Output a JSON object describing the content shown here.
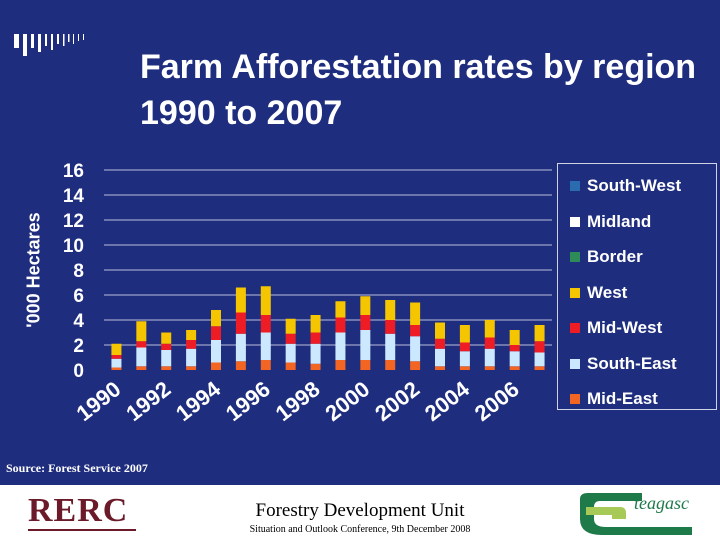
{
  "title": "Farm Afforestation rates by region 1990 to 2007",
  "source": "Source: Forest Service 2007",
  "footer": {
    "logo_left": "RERC",
    "unit": "Forestry Development Unit",
    "conference": "Situation and Outlook Conference, 9th December 2008",
    "logo_right": "teagasc"
  },
  "colors": {
    "background": "#1f2d7e",
    "Mid-East": "#f26522",
    "South-East": "#cce8ff",
    "Mid-West": "#ee1c25",
    "West": "#f5c500",
    "Border": "#2e8b57",
    "Midland": "#ffffff",
    "South-West": "#2b6cb0"
  },
  "chart_data": {
    "type": "bar",
    "stacked": true,
    "categories": [
      "1990",
      "1991",
      "1992",
      "1993",
      "1994",
      "1995",
      "1996",
      "1997",
      "1998",
      "1999",
      "2000",
      "2001",
      "2002",
      "2003",
      "2004",
      "2005",
      "2006",
      "2007"
    ],
    "x_tick_labels": [
      "1990",
      "1992",
      "1994",
      "1996",
      "1998",
      "2000",
      "2002",
      "2004",
      "2006"
    ],
    "ylabel": "'000 Hectares",
    "ylim": [
      0,
      16
    ],
    "yticks": [
      0,
      2,
      4,
      6,
      8,
      10,
      12,
      14,
      16
    ],
    "legend_position": "right",
    "legend_order": [
      "South-West",
      "Midland",
      "Border",
      "West",
      "Mid-West",
      "South-East",
      "Mid-East"
    ],
    "series": [
      {
        "name": "Mid-East",
        "values": [
          0.2,
          0.3,
          0.3,
          0.3,
          0.6,
          0.7,
          0.8,
          0.6,
          0.5,
          0.8,
          0.8,
          0.8,
          0.7,
          0.3,
          0.3,
          0.3,
          0.3,
          0.3
        ]
      },
      {
        "name": "South-East",
        "values": [
          0.7,
          1.5,
          1.3,
          1.4,
          1.8,
          2.2,
          2.2,
          1.5,
          1.6,
          2.2,
          2.4,
          2.1,
          2.0,
          1.4,
          1.2,
          1.4,
          1.2,
          1.1
        ]
      },
      {
        "name": "Mid-West",
        "values": [
          0.3,
          0.5,
          0.5,
          0.7,
          1.1,
          1.7,
          1.4,
          0.8,
          0.9,
          1.2,
          1.2,
          1.1,
          0.9,
          0.8,
          0.7,
          0.9,
          0.5,
          0.9
        ]
      },
      {
        "name": "West",
        "values": [
          0.9,
          1.6,
          0.9,
          0.8,
          1.3,
          2.0,
          2.3,
          1.2,
          1.4,
          1.3,
          1.5,
          1.6,
          1.8,
          1.3,
          1.4,
          1.4,
          1.2,
          1.3
        ]
      }
    ]
  }
}
